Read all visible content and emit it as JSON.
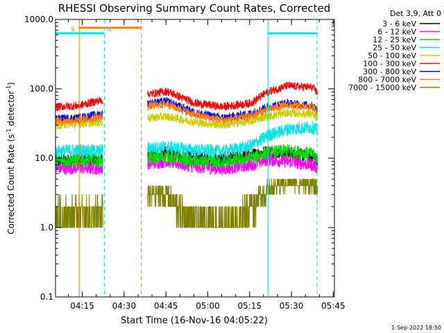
{
  "chart_data": {
    "type": "line",
    "title": "RHESSI Observing Summary Count Rates, Corrected",
    "xlabel": "Start Time (16-Nov-16 04:05:22)",
    "ylabel_main": "Corrected Count Rate (s",
    "ylabel_sup1": "-1",
    "ylabel_mid": " detector",
    "ylabel_sup2": "-1",
    "ylabel_end": ")",
    "ylabel": "Corrected Count Rate (s-1 detector-1)",
    "yscale": "log",
    "ylim": [
      0.1,
      1000
    ],
    "yticks": [
      {
        "value": 0.1,
        "label": "0.1"
      },
      {
        "value": 1,
        "label": "1.0"
      },
      {
        "value": 10,
        "label": "10.0"
      },
      {
        "value": 100,
        "label": "100.0"
      },
      {
        "value": 1000,
        "label": "1000.0"
      }
    ],
    "xlim_minutes": [
      0,
      100
    ],
    "xticks": [
      {
        "label": "04:15",
        "minutes": 9.6
      },
      {
        "label": "04:30",
        "minutes": 24.6
      },
      {
        "label": "04:45",
        "minutes": 39.6
      },
      {
        "label": "05:00",
        "minutes": 54.6
      },
      {
        "label": "05:15",
        "minutes": 69.6
      },
      {
        "label": "05:30",
        "minutes": 84.6
      },
      {
        "label": "05:45",
        "minutes": 99.6
      }
    ],
    "legend_title": "Det 3,9, Att 0",
    "legend_position": "right",
    "data_gaps_minutes": [
      [
        17,
        33
      ]
    ],
    "series": [
      {
        "name": "3 - 6 keV",
        "color": "#000000",
        "points": [
          [
            0,
            9
          ],
          [
            8,
            9.5
          ],
          [
            16,
            9.3
          ],
          [
            33,
            11
          ],
          [
            40,
            12
          ],
          [
            50,
            10
          ],
          [
            60,
            9.5
          ],
          [
            70,
            11
          ],
          [
            76,
            12.5
          ],
          [
            83,
            12
          ],
          [
            92,
            10.5
          ],
          [
            94,
            9.5
          ]
        ]
      },
      {
        "name": "6 - 12 keV",
        "color": "#ff00ff",
        "points": [
          [
            0,
            7
          ],
          [
            8,
            7.3
          ],
          [
            16,
            7.1
          ],
          [
            33,
            8.5
          ],
          [
            40,
            9
          ],
          [
            50,
            7.5
          ],
          [
            60,
            7
          ],
          [
            70,
            8
          ],
          [
            76,
            9.5
          ],
          [
            83,
            9
          ],
          [
            92,
            8
          ],
          [
            94,
            7.3
          ]
        ]
      },
      {
        "name": "12 - 25 keV",
        "color": "#00dd00",
        "points": [
          [
            0,
            9
          ],
          [
            8,
            9.5
          ],
          [
            16,
            9.3
          ],
          [
            33,
            10
          ],
          [
            40,
            10.5
          ],
          [
            50,
            9
          ],
          [
            60,
            8.8
          ],
          [
            70,
            10
          ],
          [
            76,
            12
          ],
          [
            83,
            13
          ],
          [
            92,
            11.5
          ],
          [
            94,
            10
          ]
        ]
      },
      {
        "name": "25 - 50 keV",
        "color": "#00e5e5",
        "points": [
          [
            0,
            12.5
          ],
          [
            8,
            13
          ],
          [
            16,
            12.8
          ],
          [
            33,
            14
          ],
          [
            40,
            14.5
          ],
          [
            50,
            13
          ],
          [
            60,
            12.5
          ],
          [
            70,
            15
          ],
          [
            76,
            21
          ],
          [
            83,
            26
          ],
          [
            92,
            28
          ],
          [
            94,
            25
          ]
        ]
      },
      {
        "name": "50 - 100 keV",
        "color": "#cccc00",
        "points": [
          [
            0,
            30
          ],
          [
            8,
            31
          ],
          [
            16,
            33
          ],
          [
            33,
            38
          ],
          [
            40,
            40
          ],
          [
            50,
            33
          ],
          [
            60,
            30
          ],
          [
            70,
            34
          ],
          [
            76,
            40
          ],
          [
            83,
            45
          ],
          [
            92,
            43
          ],
          [
            94,
            37
          ]
        ]
      },
      {
        "name": "100 - 300 keV",
        "color": "#ff0000",
        "points": [
          [
            0,
            55
          ],
          [
            8,
            57
          ],
          [
            16,
            68
          ],
          [
            33,
            83
          ],
          [
            40,
            92
          ],
          [
            50,
            62
          ],
          [
            60,
            55
          ],
          [
            70,
            62
          ],
          [
            76,
            90
          ],
          [
            83,
            110
          ],
          [
            92,
            105
          ],
          [
            94,
            88
          ]
        ]
      },
      {
        "name": "300 - 800 keV",
        "color": "#0000ff",
        "points": [
          [
            0,
            37
          ],
          [
            8,
            38
          ],
          [
            16,
            43
          ],
          [
            33,
            62
          ],
          [
            40,
            66
          ],
          [
            50,
            45
          ],
          [
            60,
            38
          ],
          [
            70,
            44
          ],
          [
            76,
            55
          ],
          [
            83,
            62
          ],
          [
            92,
            57
          ],
          [
            94,
            50
          ]
        ]
      },
      {
        "name": "800 - 7000 keV",
        "color": "#ff8000",
        "points": [
          [
            0,
            34
          ],
          [
            8,
            35
          ],
          [
            16,
            39
          ],
          [
            33,
            56
          ],
          [
            40,
            60
          ],
          [
            50,
            42
          ],
          [
            60,
            35
          ],
          [
            70,
            40
          ],
          [
            76,
            50
          ],
          [
            83,
            58
          ],
          [
            92,
            54
          ],
          [
            94,
            48
          ]
        ]
      },
      {
        "name": "7000 - 15000 keV",
        "color": "#808000",
        "points": [
          [
            0,
            1.5
          ],
          [
            8,
            1.6
          ],
          [
            16,
            1.6
          ],
          [
            33,
            3
          ],
          [
            40,
            3
          ],
          [
            46,
            1.5
          ],
          [
            50,
            1.1
          ],
          [
            60,
            1.1
          ],
          [
            66,
            1.4
          ],
          [
            70,
            2.2
          ],
          [
            76,
            3.5
          ],
          [
            83,
            4.5
          ],
          [
            92,
            4.2
          ],
          [
            94,
            3.8
          ]
        ]
      }
    ],
    "annotations": [
      {
        "text": "S",
        "color": "#ff8000",
        "type": "saa",
        "x_minutes": 8.5
      },
      {
        "text": "N",
        "color": "#00e5e5",
        "type": "night",
        "x_minutes": 17.5
      }
    ],
    "markers": [
      {
        "type": "saa-interval",
        "color": "#ff8000",
        "from_minutes": 8.5,
        "to_minutes": 30.8
      },
      {
        "type": "night-interval",
        "color": "#00e5e5",
        "from_minutes": 0,
        "to_minutes": 17.5
      },
      {
        "type": "night-interval",
        "color": "#00e5e5",
        "from_minutes": 76.2,
        "to_minutes": 93.8
      }
    ]
  },
  "footer": {
    "timestamp": "1-Sep-2022 18:50"
  }
}
